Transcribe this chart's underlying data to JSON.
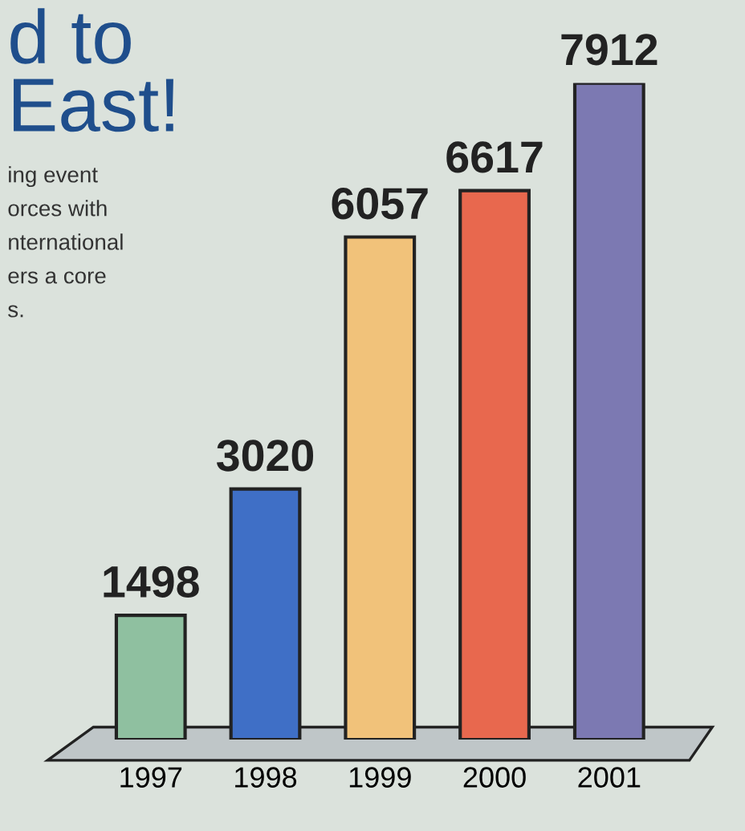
{
  "chart_data": {
    "type": "bar",
    "title": "d to\nEast!",
    "annotations": [
      "ing event\norces with\nnternational\ners a core\ns."
    ],
    "categories": [
      "1997",
      "1998",
      "1999",
      "2000",
      "2001"
    ],
    "values": [
      1498,
      3020,
      6057,
      6617,
      7912
    ],
    "colors": [
      "#8fc0a0",
      "#3f6fc6",
      "#f1c27a",
      "#e8684e",
      "#7c79b2"
    ],
    "data_labels": true,
    "grid": false,
    "legend": false
  }
}
